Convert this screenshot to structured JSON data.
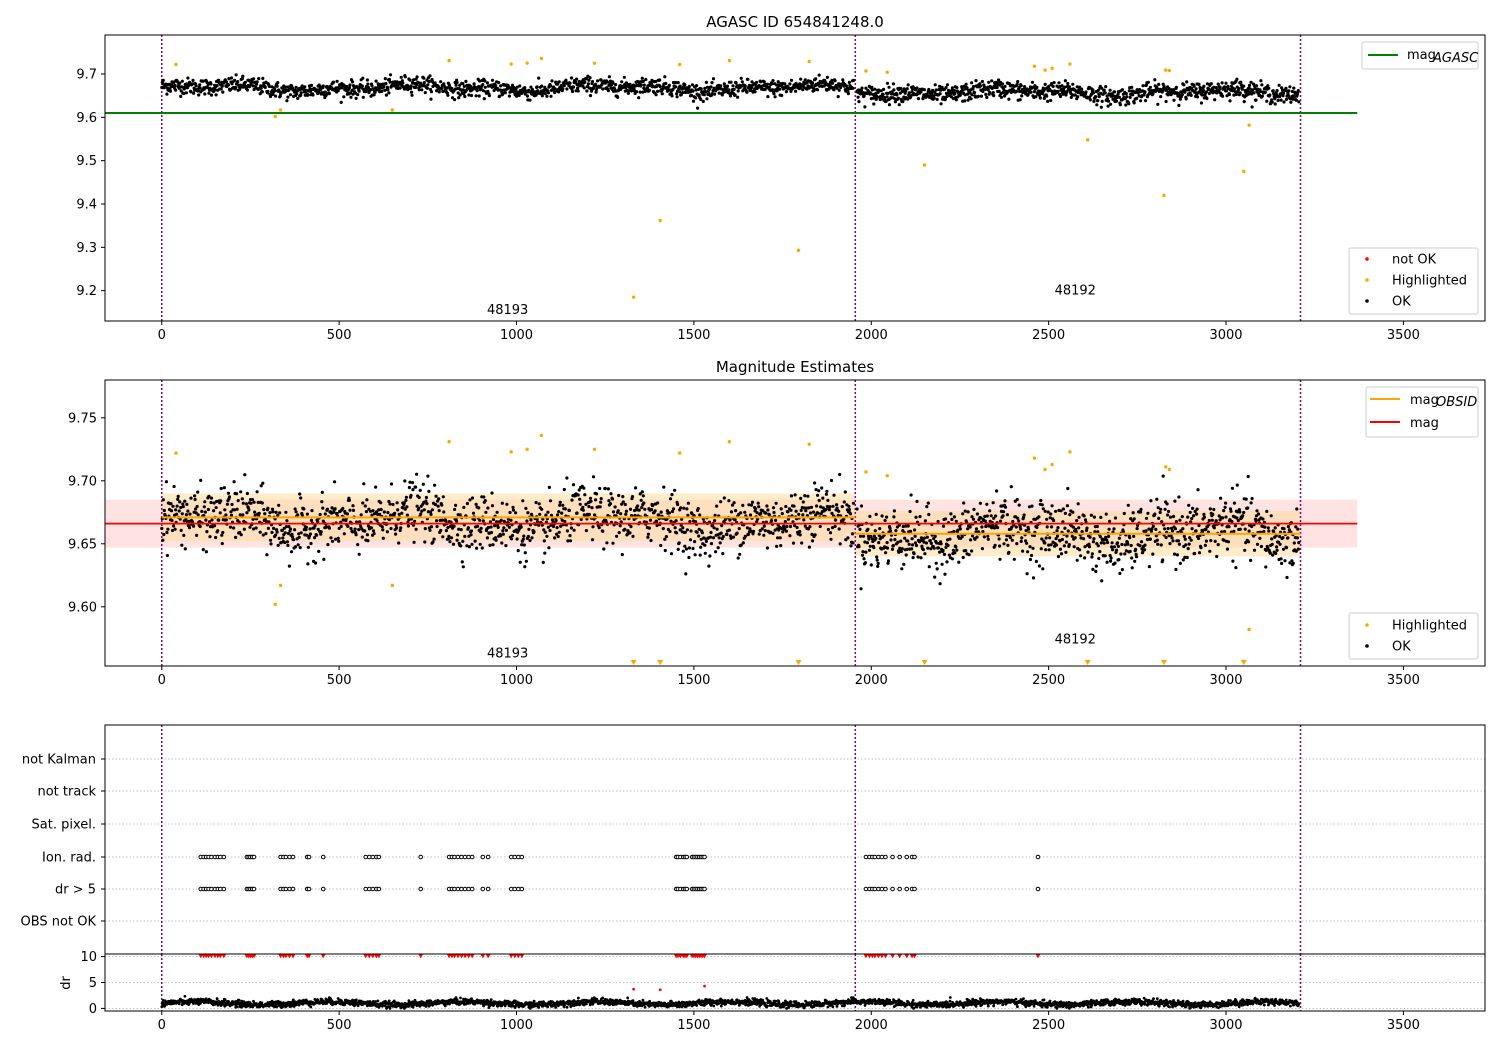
{
  "colors": {
    "ok": "#000000",
    "highlighted": "#ffa500",
    "not_ok": "#ff0000",
    "agasc_line": "#008000",
    "obsid_line": "#ffa500",
    "mag_line": "#ff0000",
    "mag_band": "#ffcccc",
    "obsid_band": "#ffdca0",
    "obs_boundary": "#800080",
    "grid": "#b0b0b0"
  },
  "chart_data": [
    {
      "type": "scatter",
      "title": "AGASC ID 654841248.0",
      "xlim": [
        -160,
        3730
      ],
      "ylim": [
        9.13,
        9.79
      ],
      "xticks": [
        "0",
        "500",
        "1000",
        "1500",
        "2000",
        "2500",
        "3000",
        "3500"
      ],
      "yticks": [
        "9.2",
        "9.3",
        "9.4",
        "9.5",
        "9.6",
        "9.7"
      ],
      "obs_boundaries": [
        0,
        1955,
        3210
      ],
      "lines": [
        {
          "name": "mag_AGASC",
          "label_main": "mag",
          "label_sub": "AGASC",
          "y": 9.61,
          "x": [
            -160,
            3370
          ],
          "color": "#008000"
        }
      ],
      "series": [
        {
          "name": "not OK",
          "color": "#ff0000",
          "points": []
        },
        {
          "name": "Highlighted",
          "color": "#ffa500",
          "points": [
            [
              40,
              9.722
            ],
            [
              320,
              9.602
            ],
            [
              335,
              9.617
            ],
            [
              650,
              9.617
            ],
            [
              810,
              9.731
            ],
            [
              985,
              9.723
            ],
            [
              1030,
              9.725
            ],
            [
              1070,
              9.736
            ],
            [
              1220,
              9.725
            ],
            [
              1330,
              9.185
            ],
            [
              1405,
              9.362
            ],
            [
              1460,
              9.722
            ],
            [
              1600,
              9.731
            ],
            [
              1795,
              9.293
            ],
            [
              1825,
              9.729
            ],
            [
              1985,
              9.707
            ],
            [
              2045,
              9.704
            ],
            [
              2150,
              9.49
            ],
            [
              2460,
              9.718
            ],
            [
              2490,
              9.709
            ],
            [
              2510,
              9.713
            ],
            [
              2560,
              9.723
            ],
            [
              2610,
              9.548
            ],
            [
              2825,
              9.42
            ],
            [
              2830,
              9.709
            ],
            [
              2840,
              9.708
            ],
            [
              3050,
              9.475
            ],
            [
              3065,
              9.582
            ]
          ]
        },
        {
          "name": "OK",
          "color": "#000000",
          "segments": [
            {
              "x0": 0,
              "x1": 1950,
              "n": 1350,
              "base": 9.668,
              "amp": 0.011
            },
            {
              "x0": 1960,
              "x1": 3205,
              "n": 900,
              "base": 9.658,
              "amp": 0.012
            }
          ]
        }
      ],
      "legend": {
        "upper": [
          "mag_AGASC"
        ],
        "lower": [
          "not OK",
          "Highlighted",
          "OK"
        ]
      },
      "annotations": [
        {
          "text": "48193",
          "x": 975,
          "y": 9.155
        },
        {
          "text": "48192",
          "x": 2575,
          "y": 9.2
        }
      ]
    },
    {
      "type": "scatter",
      "title": "Magnitude Estimates",
      "xlim": [
        -160,
        3730
      ],
      "ylim": [
        9.553,
        9.78
      ],
      "xticks": [
        "0",
        "500",
        "1000",
        "1500",
        "2000",
        "2500",
        "3000",
        "3500"
      ],
      "yticks": [
        "9.60",
        "9.65",
        "9.70",
        "9.75"
      ],
      "obs_boundaries": [
        0,
        1955,
        3210
      ],
      "bands": [
        {
          "name": "mag",
          "x": [
            -160,
            3370
          ],
          "y0": 9.647,
          "y1": 9.685,
          "color": "#ffcccc"
        },
        {
          "name": "mag_OBSID 48193",
          "x": [
            0,
            1955
          ],
          "y0": 9.652,
          "y1": 9.69,
          "color": "#ffdca0"
        },
        {
          "name": "mag_OBSID 48192",
          "x": [
            1955,
            3210
          ],
          "y0": 9.64,
          "y1": 9.676,
          "color": "#ffdca0"
        }
      ],
      "lines": [
        {
          "name": "mag_OBSID",
          "label_main": "mag",
          "label_sub": "OBSID",
          "color": "#ffa500",
          "segments": [
            {
              "x0": 0,
              "x1": 1955,
              "y": 9.671
            },
            {
              "x0": 1955,
              "x1": 3210,
              "y": 9.658
            }
          ]
        },
        {
          "name": "mag",
          "label_main": "mag",
          "label_sub": "",
          "color": "#ff0000",
          "segments": [
            {
              "x0": -160,
              "x1": 3370,
              "y": 9.666
            }
          ]
        }
      ],
      "series": [
        {
          "name": "Highlighted",
          "color": "#ffa500",
          "points": [
            [
              40,
              9.722
            ],
            [
              320,
              9.602
            ],
            [
              335,
              9.617
            ],
            [
              650,
              9.617
            ],
            [
              810,
              9.731
            ],
            [
              985,
              9.723
            ],
            [
              1030,
              9.725
            ],
            [
              1070,
              9.736
            ],
            [
              1220,
              9.725
            ],
            [
              1460,
              9.722
            ],
            [
              1600,
              9.731
            ],
            [
              1825,
              9.729
            ],
            [
              1985,
              9.707
            ],
            [
              2045,
              9.704
            ],
            [
              2460,
              9.718
            ],
            [
              2490,
              9.709
            ],
            [
              2510,
              9.713
            ],
            [
              2560,
              9.723
            ],
            [
              2830,
              9.711
            ],
            [
              2840,
              9.709
            ],
            [
              3065,
              9.582
            ]
          ]
        },
        {
          "name": "OK",
          "color": "#000000",
          "segments": [
            {
              "x0": 0,
              "x1": 1950,
              "n": 1350,
              "base": 9.668,
              "amp": 0.011
            },
            {
              "x0": 1960,
              "x1": 3205,
              "n": 900,
              "base": 9.658,
              "amp": 0.012
            }
          ]
        }
      ],
      "offscale_markers": {
        "color": "#ffa500",
        "x": [
          1330,
          1405,
          1795,
          2150,
          2610,
          2825,
          3050
        ]
      },
      "legend": {
        "upper": [
          "mag_OBSID",
          "mag"
        ],
        "lower": [
          "Highlighted",
          "OK"
        ]
      },
      "annotations": [
        {
          "text": "48193",
          "x": 975,
          "y": 9.563
        },
        {
          "text": "48192",
          "x": 2575,
          "y": 9.574
        }
      ]
    },
    {
      "type": "scatter",
      "title": "",
      "xlim": [
        -160,
        3730
      ],
      "xticks": [
        "0",
        "500",
        "1000",
        "1500",
        "2000",
        "2500",
        "3000",
        "3500"
      ],
      "obs_boundaries": [
        0,
        1955,
        3210
      ],
      "flag_rows": [
        "not Kalman",
        "not track",
        "Sat. pixel.",
        "Ion. rad.",
        "dr > 5",
        "OBS not OK"
      ],
      "flag_points": {
        "Ion. rad.": [
          110,
          118,
          125,
          132,
          140,
          150,
          158,
          165,
          175,
          240,
          245,
          250,
          255,
          260,
          335,
          343,
          350,
          360,
          370,
          410,
          415,
          455,
          575,
          585,
          595,
          605,
          612,
          730,
          810,
          818,
          825,
          835,
          845,
          855,
          865,
          875,
          905,
          920,
          985,
          995,
          1005,
          1015,
          1450,
          1455,
          1462,
          1470,
          1475,
          1480,
          1495,
          1500,
          1505,
          1510,
          1515,
          1520,
          1525,
          1530,
          1985,
          1995,
          2003,
          2010,
          2020,
          2030,
          2040,
          2060,
          2080,
          2100,
          2115,
          2122,
          2470
        ],
        "dr > 5": [
          110,
          118,
          125,
          132,
          140,
          150,
          158,
          165,
          175,
          240,
          245,
          250,
          255,
          260,
          335,
          343,
          350,
          360,
          370,
          410,
          415,
          455,
          575,
          585,
          595,
          605,
          612,
          730,
          810,
          818,
          825,
          835,
          845,
          855,
          865,
          875,
          905,
          920,
          985,
          995,
          1005,
          1015,
          1450,
          1455,
          1462,
          1470,
          1475,
          1480,
          1495,
          1500,
          1505,
          1510,
          1515,
          1520,
          1525,
          1530,
          1985,
          1995,
          2003,
          2010,
          2020,
          2030,
          2040,
          2060,
          2080,
          2100,
          2115,
          2122,
          2470
        ]
      },
      "dr_panel": {
        "ylabel": "dr",
        "yticks": [
          "0",
          "5",
          "10"
        ],
        "ylim": [
          -0.5,
          10.5
        ],
        "clipped_value": 10,
        "clipped_color": "#ff0000",
        "clipped_x": [
          110,
          118,
          125,
          132,
          140,
          150,
          158,
          165,
          175,
          240,
          245,
          250,
          255,
          260,
          335,
          343,
          350,
          360,
          370,
          410,
          415,
          455,
          575,
          585,
          595,
          605,
          612,
          730,
          810,
          818,
          825,
          835,
          845,
          855,
          865,
          875,
          905,
          920,
          985,
          995,
          1005,
          1015,
          1450,
          1455,
          1462,
          1470,
          1475,
          1480,
          1495,
          1500,
          1505,
          1510,
          1515,
          1520,
          1525,
          1530,
          1985,
          1995,
          2003,
          2010,
          2020,
          2030,
          2040,
          2060,
          2080,
          2100,
          2115,
          2122,
          2470
        ],
        "red_points": [
          [
            1330,
            3.7
          ],
          [
            1405,
            3.6
          ],
          [
            1530,
            4.3
          ]
        ],
        "ok_points": {
          "x0": 0,
          "x1": 3205,
          "n": 3000,
          "base": 1.0,
          "amp": 0.5
        }
      }
    }
  ]
}
